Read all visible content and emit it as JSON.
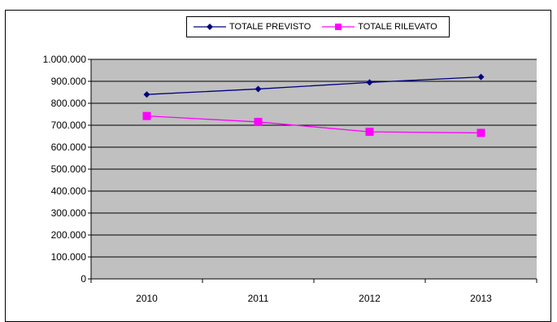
{
  "chart_data": {
    "type": "line",
    "title": "",
    "xlabel": "",
    "ylabel": "",
    "categories": [
      "2010",
      "2011",
      "2012",
      "2013"
    ],
    "ylim": [
      0,
      1000000
    ],
    "y_ticks": [
      "0",
      "100.000",
      "200.000",
      "300.000",
      "400.000",
      "500.000",
      "600.000",
      "700.000",
      "800.000",
      "900.000",
      "1.000.000"
    ],
    "grid": true,
    "legend_position": "top",
    "series": [
      {
        "name": "TOTALE PREVISTO",
        "color": "#000080",
        "marker": "diamond",
        "values": [
          840000,
          865000,
          895000,
          920000
        ]
      },
      {
        "name": "TOTALE RILEVATO",
        "color": "#ff00ff",
        "marker": "square",
        "values": [
          742000,
          715000,
          670000,
          665000
        ]
      }
    ],
    "plot_background": "#c0c0c0"
  }
}
